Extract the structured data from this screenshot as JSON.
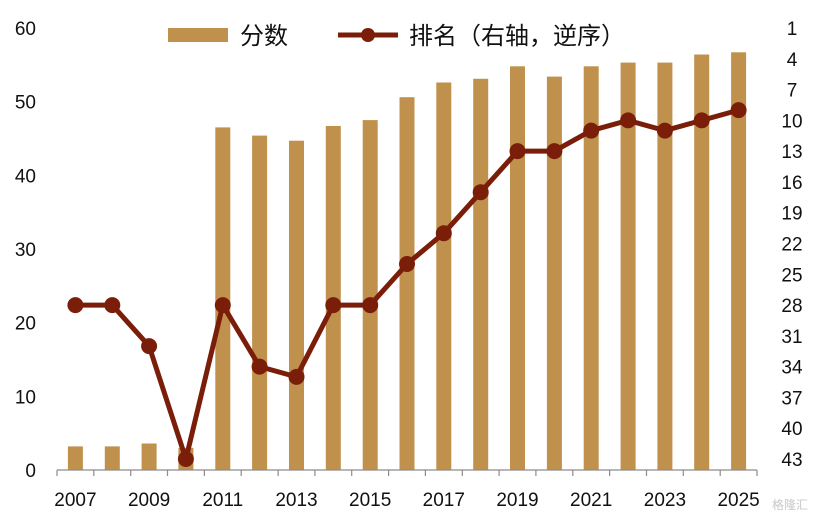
{
  "chart_data": {
    "type": "bar+line",
    "categories": [
      "2007",
      "2008",
      "2009",
      "2010",
      "2011",
      "2012",
      "2013",
      "2014",
      "2015",
      "2016",
      "2017",
      "2018",
      "2019",
      "2020",
      "2021",
      "2022",
      "2023",
      "2024",
      "2025"
    ],
    "x_tick_labels": [
      "2007",
      "2009",
      "2011",
      "2013",
      "2015",
      "2017",
      "2019",
      "2021",
      "2023",
      "2025"
    ],
    "series": [
      {
        "name": "分数",
        "type": "bar",
        "axis": "left",
        "color": "#BF914C",
        "values": [
          3.2,
          3.2,
          3.6,
          3.0,
          46.5,
          45.4,
          44.7,
          46.7,
          47.5,
          50.6,
          52.6,
          53.1,
          54.8,
          53.4,
          54.8,
          55.3,
          55.3,
          56.4,
          56.7
        ]
      },
      {
        "name": "排名（右轴，逆序）",
        "type": "line",
        "axis": "right",
        "color": "#7A1E0A",
        "values": [
          28,
          28,
          32,
          43,
          28,
          34,
          35,
          28,
          28,
          24,
          21,
          17,
          13,
          13,
          11,
          10,
          11,
          10,
          9
        ]
      }
    ],
    "y_left": {
      "ylim": [
        0,
        60
      ],
      "ticks": [
        "0",
        "10",
        "20",
        "30",
        "40",
        "50",
        "60"
      ]
    },
    "y_right": {
      "inverted": true,
      "ylim": [
        1,
        43
      ],
      "ticks": [
        "1",
        "4",
        "7",
        "10",
        "13",
        "16",
        "19",
        "22",
        "25",
        "28",
        "31",
        "34",
        "37",
        "40",
        "43"
      ]
    },
    "grid": false,
    "legend": {
      "placement": "top-center",
      "items": [
        "分数",
        "排名（右轴，逆序）"
      ]
    }
  },
  "watermark": "格隆汇"
}
